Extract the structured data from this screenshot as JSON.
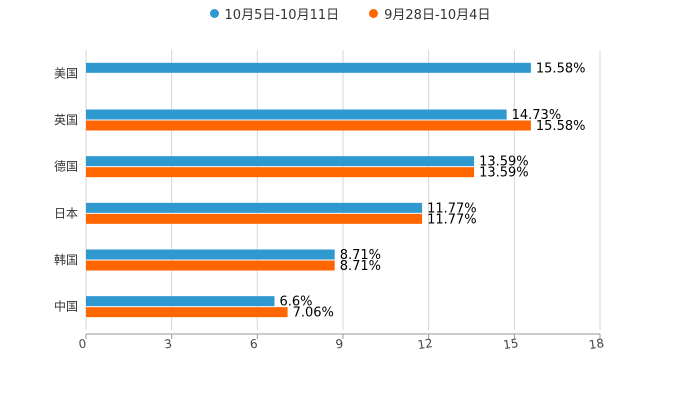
{
  "chart_data": {
    "type": "bar",
    "orientation": "horizontal",
    "categories": [
      "美国",
      "英国",
      "德国",
      "日本",
      "韩国",
      "中国"
    ],
    "series": [
      {
        "name": "10月5日-10月11日",
        "color": "#2e98cf",
        "values": [
          15.58,
          14.73,
          13.59,
          11.77,
          8.71,
          6.6
        ],
        "labels": [
          "15.58%",
          "14.73%",
          "13.59%",
          "11.77%",
          "8.71%",
          "6.6%"
        ]
      },
      {
        "name": "9月28日-10月4日",
        "color": "#ff6600",
        "values": [
          null,
          15.58,
          13.59,
          11.77,
          8.71,
          7.06
        ],
        "labels": [
          "",
          "15.58%",
          "13.59%",
          "11.77%",
          "8.71%",
          "7.06%"
        ]
      }
    ],
    "xlim": [
      0,
      18
    ],
    "xticks": [
      0,
      3,
      6,
      9,
      12,
      15,
      18
    ],
    "tick_labels": [
      "0",
      "3",
      "6",
      "9",
      "12",
      "15",
      "18"
    ],
    "legend_position": "top-center",
    "grid": true
  }
}
